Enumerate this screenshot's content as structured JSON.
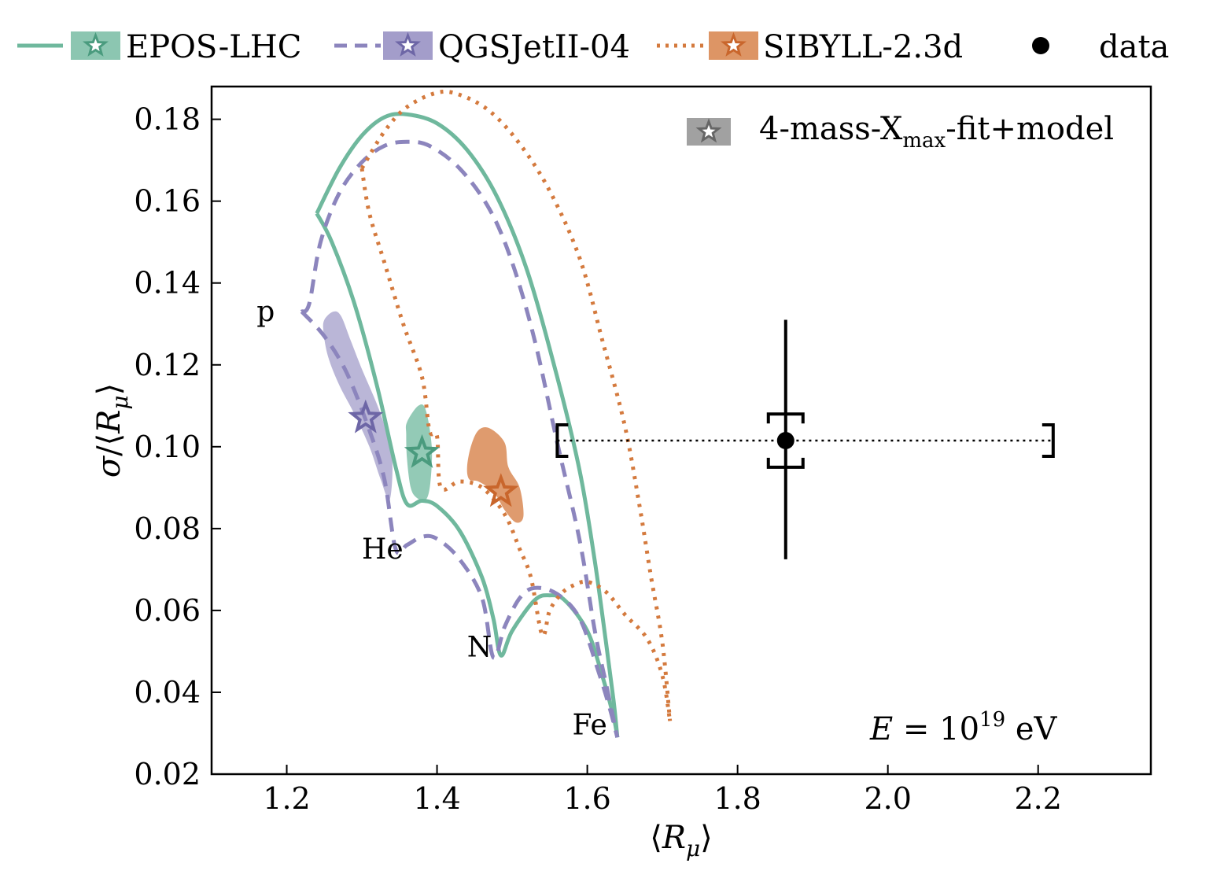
{
  "chart_data": {
    "type": "scatter",
    "xlabel": "⟨Rμ⟩",
    "ylabel": "σ/⟨Rμ⟩",
    "xlim": [
      1.1,
      2.35
    ],
    "ylim": [
      0.02,
      0.188
    ],
    "xticks": [
      1.2,
      1.4,
      1.6,
      1.8,
      2.0,
      2.2
    ],
    "xtick_labels": [
      "1.2",
      "1.4",
      "1.6",
      "1.8",
      "2.0",
      "2.2"
    ],
    "yticks": [
      0.02,
      0.04,
      0.06,
      0.08,
      0.1,
      0.12,
      0.14,
      0.16,
      0.18
    ],
    "ytick_labels": [
      "0.02",
      "0.04",
      "0.06",
      "0.08",
      "0.10",
      "0.12",
      "0.14",
      "0.16",
      "0.18"
    ],
    "energy_label": {
      "prefix": "E",
      "eq": " = 10",
      "sup": "19",
      "unit": " eV"
    },
    "inner_legend": {
      "label_pre": "4-mass-X",
      "label_sub": "max",
      "label_post": "-fit+model",
      "color": "#8a8a8a"
    },
    "mass_labels": [
      {
        "text": "p",
        "x": 1.16,
        "y": 0.133
      },
      {
        "text": "He",
        "x": 1.3,
        "y": 0.075
      },
      {
        "text": "N",
        "x": 1.44,
        "y": 0.051
      },
      {
        "text": "Fe",
        "x": 1.58,
        "y": 0.032
      }
    ],
    "series": [
      {
        "name": "EPOS-LHC",
        "color": "#6fb89d",
        "dark": "#4a9b7e",
        "style": "solid",
        "outer_curve": [
          [
            1.24,
            0.157
          ],
          [
            1.27,
            0.168
          ],
          [
            1.3,
            0.176
          ],
          [
            1.33,
            0.1805
          ],
          [
            1.36,
            0.1812
          ],
          [
            1.4,
            0.179
          ],
          [
            1.44,
            0.1725
          ],
          [
            1.48,
            0.161
          ],
          [
            1.52,
            0.143
          ],
          [
            1.56,
            0.117
          ],
          [
            1.59,
            0.094
          ],
          [
            1.61,
            0.072
          ],
          [
            1.625,
            0.052
          ],
          [
            1.635,
            0.038
          ],
          [
            1.64,
            0.029
          ]
        ],
        "inner_curve": [
          [
            1.24,
            0.157
          ],
          [
            1.26,
            0.15
          ],
          [
            1.29,
            0.135
          ],
          [
            1.32,
            0.115
          ],
          [
            1.345,
            0.095
          ],
          [
            1.36,
            0.086
          ],
          [
            1.38,
            0.0868
          ],
          [
            1.4,
            0.0855
          ],
          [
            1.43,
            0.0795
          ],
          [
            1.46,
            0.068
          ],
          [
            1.475,
            0.058
          ],
          [
            1.485,
            0.049
          ],
          [
            1.5,
            0.055
          ],
          [
            1.53,
            0.0625
          ],
          [
            1.55,
            0.0637
          ],
          [
            1.57,
            0.0625
          ],
          [
            1.6,
            0.055
          ],
          [
            1.62,
            0.044
          ],
          [
            1.635,
            0.034
          ],
          [
            1.64,
            0.029
          ]
        ],
        "band": [
          [
            1.36,
            0.106
          ],
          [
            1.375,
            0.11
          ],
          [
            1.385,
            0.109
          ],
          [
            1.393,
            0.1
          ],
          [
            1.391,
            0.091
          ],
          [
            1.385,
            0.087
          ],
          [
            1.373,
            0.0875
          ],
          [
            1.365,
            0.09
          ],
          [
            1.36,
            0.097
          ],
          [
            1.359,
            0.103
          ]
        ],
        "star": {
          "x": 1.38,
          "y": 0.0985
        }
      },
      {
        "name": "QGSJetII-04",
        "color": "#8c85bd",
        "dark": "#6d66a6",
        "style": "dashed",
        "outer_curve": [
          [
            1.22,
            0.133
          ],
          [
            1.23,
            0.135
          ],
          [
            1.245,
            0.15
          ],
          [
            1.27,
            0.162
          ],
          [
            1.3,
            0.1695
          ],
          [
            1.33,
            0.1735
          ],
          [
            1.36,
            0.1745
          ],
          [
            1.39,
            0.1735
          ],
          [
            1.43,
            0.168
          ],
          [
            1.47,
            0.158
          ],
          [
            1.5,
            0.145
          ],
          [
            1.53,
            0.126
          ],
          [
            1.56,
            0.101
          ],
          [
            1.59,
            0.077
          ],
          [
            1.61,
            0.055
          ],
          [
            1.625,
            0.042
          ],
          [
            1.64,
            0.029
          ]
        ],
        "inner_curve": [
          [
            1.22,
            0.133
          ],
          [
            1.25,
            0.127
          ],
          [
            1.28,
            0.118
          ],
          [
            1.31,
            0.104
          ],
          [
            1.33,
            0.092
          ],
          [
            1.345,
            0.075
          ],
          [
            1.36,
            0.076
          ],
          [
            1.38,
            0.078
          ],
          [
            1.4,
            0.0775
          ],
          [
            1.43,
            0.0725
          ],
          [
            1.46,
            0.063
          ],
          [
            1.475,
            0.0485
          ],
          [
            1.49,
            0.056
          ],
          [
            1.51,
            0.063
          ],
          [
            1.53,
            0.0655
          ],
          [
            1.56,
            0.064
          ],
          [
            1.59,
            0.058
          ],
          [
            1.615,
            0.045
          ],
          [
            1.63,
            0.036
          ],
          [
            1.64,
            0.029
          ]
        ],
        "band": [
          [
            1.25,
            0.131
          ],
          [
            1.262,
            0.133
          ],
          [
            1.272,
            0.132
          ],
          [
            1.285,
            0.126
          ],
          [
            1.3,
            0.119
          ],
          [
            1.325,
            0.108
          ],
          [
            1.34,
            0.098
          ],
          [
            1.337,
            0.087
          ],
          [
            1.325,
            0.092
          ],
          [
            1.31,
            0.1
          ],
          [
            1.29,
            0.108
          ],
          [
            1.27,
            0.115
          ],
          [
            1.255,
            0.122
          ],
          [
            1.249,
            0.128
          ]
        ],
        "star": {
          "x": 1.305,
          "y": 0.107
        }
      },
      {
        "name": "SIBYLL-2.3d",
        "color": "#d47a3e",
        "dark": "#c9662c",
        "style": "dotted",
        "outer_curve": [
          [
            1.3,
            0.168
          ],
          [
            1.33,
            0.177
          ],
          [
            1.36,
            0.183
          ],
          [
            1.4,
            0.1865
          ],
          [
            1.43,
            0.186
          ],
          [
            1.47,
            0.182
          ],
          [
            1.51,
            0.174
          ],
          [
            1.55,
            0.1625
          ],
          [
            1.59,
            0.146
          ],
          [
            1.62,
            0.126
          ],
          [
            1.65,
            0.105
          ],
          [
            1.67,
            0.085
          ],
          [
            1.685,
            0.068
          ],
          [
            1.7,
            0.052
          ],
          [
            1.71,
            0.033
          ]
        ],
        "inner_curve": [
          [
            1.3,
            0.168
          ],
          [
            1.31,
            0.157
          ],
          [
            1.33,
            0.145
          ],
          [
            1.355,
            0.13
          ],
          [
            1.38,
            0.117
          ],
          [
            1.39,
            0.104
          ],
          [
            1.4,
            0.1025
          ],
          [
            1.405,
            0.09
          ],
          [
            1.43,
            0.0915
          ],
          [
            1.46,
            0.09
          ],
          [
            1.49,
            0.0835
          ],
          [
            1.51,
            0.075
          ],
          [
            1.525,
            0.068
          ],
          [
            1.54,
            0.054
          ],
          [
            1.55,
            0.06
          ],
          [
            1.565,
            0.064
          ],
          [
            1.58,
            0.066
          ],
          [
            1.6,
            0.067
          ],
          [
            1.625,
            0.0645
          ],
          [
            1.65,
            0.059
          ],
          [
            1.68,
            0.053
          ],
          [
            1.7,
            0.044
          ],
          [
            1.71,
            0.033
          ]
        ],
        "band": [
          [
            1.44,
            0.095
          ],
          [
            1.445,
            0.1
          ],
          [
            1.455,
            0.104
          ],
          [
            1.47,
            0.1045
          ],
          [
            1.49,
            0.101
          ],
          [
            1.495,
            0.095
          ],
          [
            1.51,
            0.09
          ],
          [
            1.515,
            0.083
          ],
          [
            1.505,
            0.0815
          ],
          [
            1.49,
            0.0845
          ],
          [
            1.475,
            0.089
          ],
          [
            1.455,
            0.0915
          ],
          [
            1.443,
            0.092
          ]
        ],
        "star": {
          "x": 1.485,
          "y": 0.089
        }
      }
    ],
    "data_point": {
      "name": "data",
      "x": 1.864,
      "y": 0.1015,
      "y_stat": [
        0.0725,
        0.131
      ],
      "y_sys": [
        0.095,
        0.108
      ],
      "x_sys": [
        1.56,
        2.22
      ]
    }
  }
}
